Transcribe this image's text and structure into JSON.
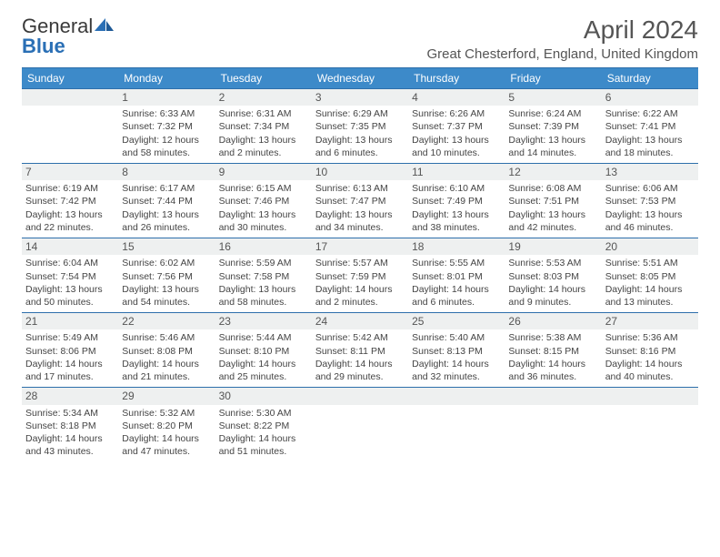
{
  "logo": {
    "word1": "General",
    "word2": "Blue"
  },
  "title": "April 2024",
  "location": "Great Chesterford, England, United Kingdom",
  "colors": {
    "header_bg": "#3d8ac9",
    "header_fg": "#ffffff",
    "rule": "#2d6fab",
    "daynum_bg": "#eef0f0",
    "text": "#444444"
  },
  "weekdays": [
    "Sunday",
    "Monday",
    "Tuesday",
    "Wednesday",
    "Thursday",
    "Friday",
    "Saturday"
  ],
  "weeks": [
    [
      {
        "n": "",
        "sunrise": "",
        "sunset": "",
        "daylight": ""
      },
      {
        "n": "1",
        "sunrise": "6:33 AM",
        "sunset": "7:32 PM",
        "daylight": "12 hours and 58 minutes."
      },
      {
        "n": "2",
        "sunrise": "6:31 AM",
        "sunset": "7:34 PM",
        "daylight": "13 hours and 2 minutes."
      },
      {
        "n": "3",
        "sunrise": "6:29 AM",
        "sunset": "7:35 PM",
        "daylight": "13 hours and 6 minutes."
      },
      {
        "n": "4",
        "sunrise": "6:26 AM",
        "sunset": "7:37 PM",
        "daylight": "13 hours and 10 minutes."
      },
      {
        "n": "5",
        "sunrise": "6:24 AM",
        "sunset": "7:39 PM",
        "daylight": "13 hours and 14 minutes."
      },
      {
        "n": "6",
        "sunrise": "6:22 AM",
        "sunset": "7:41 PM",
        "daylight": "13 hours and 18 minutes."
      }
    ],
    [
      {
        "n": "7",
        "sunrise": "6:19 AM",
        "sunset": "7:42 PM",
        "daylight": "13 hours and 22 minutes."
      },
      {
        "n": "8",
        "sunrise": "6:17 AM",
        "sunset": "7:44 PM",
        "daylight": "13 hours and 26 minutes."
      },
      {
        "n": "9",
        "sunrise": "6:15 AM",
        "sunset": "7:46 PM",
        "daylight": "13 hours and 30 minutes."
      },
      {
        "n": "10",
        "sunrise": "6:13 AM",
        "sunset": "7:47 PM",
        "daylight": "13 hours and 34 minutes."
      },
      {
        "n": "11",
        "sunrise": "6:10 AM",
        "sunset": "7:49 PM",
        "daylight": "13 hours and 38 minutes."
      },
      {
        "n": "12",
        "sunrise": "6:08 AM",
        "sunset": "7:51 PM",
        "daylight": "13 hours and 42 minutes."
      },
      {
        "n": "13",
        "sunrise": "6:06 AM",
        "sunset": "7:53 PM",
        "daylight": "13 hours and 46 minutes."
      }
    ],
    [
      {
        "n": "14",
        "sunrise": "6:04 AM",
        "sunset": "7:54 PM",
        "daylight": "13 hours and 50 minutes."
      },
      {
        "n": "15",
        "sunrise": "6:02 AM",
        "sunset": "7:56 PM",
        "daylight": "13 hours and 54 minutes."
      },
      {
        "n": "16",
        "sunrise": "5:59 AM",
        "sunset": "7:58 PM",
        "daylight": "13 hours and 58 minutes."
      },
      {
        "n": "17",
        "sunrise": "5:57 AM",
        "sunset": "7:59 PM",
        "daylight": "14 hours and 2 minutes."
      },
      {
        "n": "18",
        "sunrise": "5:55 AM",
        "sunset": "8:01 PM",
        "daylight": "14 hours and 6 minutes."
      },
      {
        "n": "19",
        "sunrise": "5:53 AM",
        "sunset": "8:03 PM",
        "daylight": "14 hours and 9 minutes."
      },
      {
        "n": "20",
        "sunrise": "5:51 AM",
        "sunset": "8:05 PM",
        "daylight": "14 hours and 13 minutes."
      }
    ],
    [
      {
        "n": "21",
        "sunrise": "5:49 AM",
        "sunset": "8:06 PM",
        "daylight": "14 hours and 17 minutes."
      },
      {
        "n": "22",
        "sunrise": "5:46 AM",
        "sunset": "8:08 PM",
        "daylight": "14 hours and 21 minutes."
      },
      {
        "n": "23",
        "sunrise": "5:44 AM",
        "sunset": "8:10 PM",
        "daylight": "14 hours and 25 minutes."
      },
      {
        "n": "24",
        "sunrise": "5:42 AM",
        "sunset": "8:11 PM",
        "daylight": "14 hours and 29 minutes."
      },
      {
        "n": "25",
        "sunrise": "5:40 AM",
        "sunset": "8:13 PM",
        "daylight": "14 hours and 32 minutes."
      },
      {
        "n": "26",
        "sunrise": "5:38 AM",
        "sunset": "8:15 PM",
        "daylight": "14 hours and 36 minutes."
      },
      {
        "n": "27",
        "sunrise": "5:36 AM",
        "sunset": "8:16 PM",
        "daylight": "14 hours and 40 minutes."
      }
    ],
    [
      {
        "n": "28",
        "sunrise": "5:34 AM",
        "sunset": "8:18 PM",
        "daylight": "14 hours and 43 minutes."
      },
      {
        "n": "29",
        "sunrise": "5:32 AM",
        "sunset": "8:20 PM",
        "daylight": "14 hours and 47 minutes."
      },
      {
        "n": "30",
        "sunrise": "5:30 AM",
        "sunset": "8:22 PM",
        "daylight": "14 hours and 51 minutes."
      },
      {
        "n": "",
        "sunrise": "",
        "sunset": "",
        "daylight": ""
      },
      {
        "n": "",
        "sunrise": "",
        "sunset": "",
        "daylight": ""
      },
      {
        "n": "",
        "sunrise": "",
        "sunset": "",
        "daylight": ""
      },
      {
        "n": "",
        "sunrise": "",
        "sunset": "",
        "daylight": ""
      }
    ]
  ],
  "labels": {
    "sunrise": "Sunrise:",
    "sunset": "Sunset:",
    "daylight": "Daylight:"
  }
}
